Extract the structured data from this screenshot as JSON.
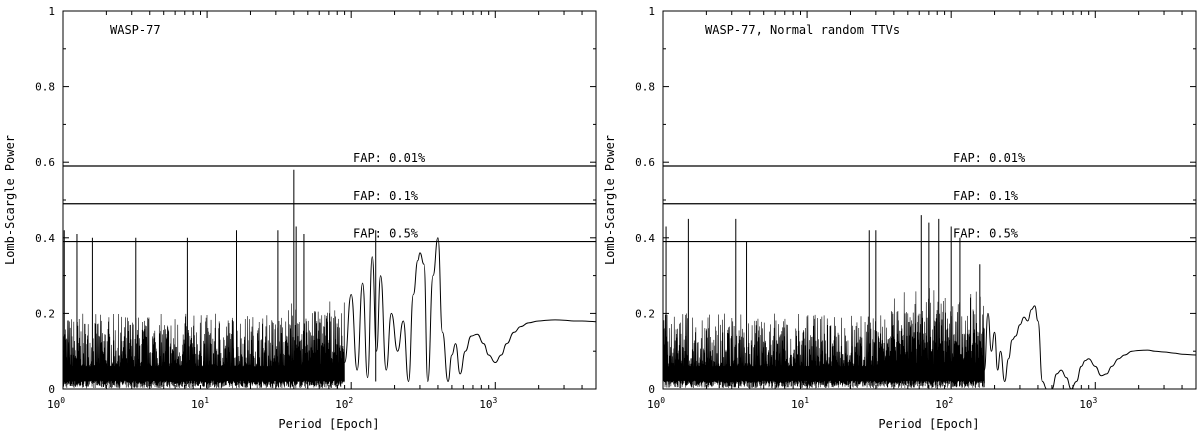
{
  "chart_data": [
    {
      "type": "line",
      "title": "WASP-77",
      "xlabel": "Period [Epoch]",
      "ylabel": "Lomb-Scargle Power",
      "xscale": "log",
      "xlim": [
        1,
        5000
      ],
      "ylim": [
        0,
        1
      ],
      "xticks": [
        {
          "base": "10",
          "exp": "0"
        },
        {
          "base": "10",
          "exp": "1"
        },
        {
          "base": "10",
          "exp": "2"
        },
        {
          "base": "10",
          "exp": "3"
        }
      ],
      "yticks": [
        "0",
        "0.2",
        "0.4",
        "0.6",
        "0.8",
        "1"
      ],
      "fap_lines": [
        {
          "label": "FAP: 0.01%",
          "value": 0.59
        },
        {
          "label": "FAP: 0.1%",
          "value": 0.49
        },
        {
          "label": "FAP: 0.5%",
          "value": 0.39
        }
      ],
      "series": [
        {
          "noise_region": {
            "from_period": 1,
            "to_period": 90
          },
          "spikes": [
            {
              "x": 1.02,
              "y": 0.42
            },
            {
              "x": 1.25,
              "y": 0.41
            },
            {
              "x": 1.6,
              "y": 0.4
            },
            {
              "x": 3.2,
              "y": 0.4
            },
            {
              "x": 7.3,
              "y": 0.4
            },
            {
              "x": 16,
              "y": 0.42
            },
            {
              "x": 31,
              "y": 0.42
            },
            {
              "x": 40,
              "y": 0.58
            },
            {
              "x": 41.5,
              "y": 0.43
            },
            {
              "x": 47,
              "y": 0.41
            },
            {
              "x": 148,
              "y": 0.42
            }
          ],
          "x": [
            90,
            100,
            110,
            120,
            130,
            140,
            150,
            160,
            175,
            190,
            210,
            230,
            250,
            270,
            290,
            300,
            320,
            340,
            370,
            400,
            430,
            470,
            500,
            530,
            570,
            620,
            680,
            750,
            830,
            900,
            1000,
            1100,
            1200,
            1350,
            1500,
            1700,
            2000,
            2300,
            2600,
            3000,
            3500,
            4000,
            4500,
            5000
          ],
          "y": [
            0.07,
            0.25,
            0.05,
            0.28,
            0.03,
            0.35,
            0.1,
            0.3,
            0.05,
            0.2,
            0.1,
            0.18,
            0.02,
            0.25,
            0.34,
            0.36,
            0.33,
            0.02,
            0.3,
            0.4,
            0.15,
            0.02,
            0.09,
            0.12,
            0.04,
            0.1,
            0.14,
            0.145,
            0.12,
            0.09,
            0.07,
            0.09,
            0.12,
            0.15,
            0.165,
            0.175,
            0.18,
            0.182,
            0.183,
            0.182,
            0.18,
            0.18,
            0.179,
            0.178
          ]
        }
      ]
    },
    {
      "type": "line",
      "title": "WASP-77, Normal random TTVs",
      "xlabel": "Period [Epoch]",
      "ylabel": "Lomb-Scargle Power",
      "xscale": "log",
      "xlim": [
        1,
        5000
      ],
      "ylim": [
        0,
        1
      ],
      "xticks": [
        {
          "base": "10",
          "exp": "0"
        },
        {
          "base": "10",
          "exp": "1"
        },
        {
          "base": "10",
          "exp": "2"
        },
        {
          "base": "10",
          "exp": "3"
        }
      ],
      "yticks": [
        "0",
        "0.2",
        "0.4",
        "0.6",
        "0.8",
        "1"
      ],
      "fap_lines": [
        {
          "label": "FAP: 0.01%",
          "value": 0.59
        },
        {
          "label": "FAP: 0.1%",
          "value": 0.49
        },
        {
          "label": "FAP: 0.5%",
          "value": 0.39
        }
      ],
      "series": [
        {
          "noise_region": {
            "from_period": 1,
            "to_period": 170
          },
          "spikes": [
            {
              "x": 1.05,
              "y": 0.43
            },
            {
              "x": 1.5,
              "y": 0.45
            },
            {
              "x": 3.2,
              "y": 0.45
            },
            {
              "x": 3.8,
              "y": 0.39
            },
            {
              "x": 27,
              "y": 0.42
            },
            {
              "x": 30,
              "y": 0.42
            },
            {
              "x": 62,
              "y": 0.46
            },
            {
              "x": 70,
              "y": 0.44
            },
            {
              "x": 82,
              "y": 0.45
            },
            {
              "x": 100,
              "y": 0.43
            },
            {
              "x": 115,
              "y": 0.4
            },
            {
              "x": 158,
              "y": 0.33
            }
          ],
          "x": [
            170,
            180,
            190,
            200,
            210,
            220,
            235,
            250,
            265,
            280,
            300,
            320,
            340,
            360,
            380,
            400,
            430,
            460,
            500,
            540,
            580,
            630,
            680,
            740,
            800,
            850,
            900,
            1000,
            1100,
            1200,
            1300,
            1450,
            1600,
            1800,
            2000,
            2300,
            2600,
            3000,
            3500,
            4000,
            5000
          ],
          "y": [
            0.05,
            0.2,
            0.1,
            0.15,
            0.05,
            0.1,
            0.02,
            0.08,
            0.13,
            0.14,
            0.17,
            0.19,
            0.18,
            0.21,
            0.22,
            0.18,
            0.02,
            0.0,
            0.0,
            0.04,
            0.05,
            0.03,
            0.0,
            0.02,
            0.06,
            0.075,
            0.08,
            0.06,
            0.035,
            0.04,
            0.06,
            0.08,
            0.09,
            0.1,
            0.102,
            0.103,
            0.1,
            0.098,
            0.095,
            0.092,
            0.09
          ]
        }
      ]
    }
  ]
}
